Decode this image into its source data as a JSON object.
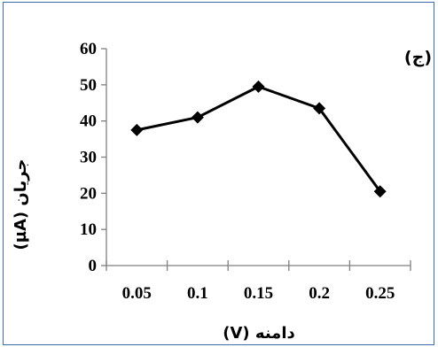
{
  "chart_data": {
    "type": "line",
    "panel_label": "(ج)",
    "title": "",
    "xlabel": "دامنه (V)",
    "ylabel": "جریان (µA)",
    "categories": [
      "0.05",
      "0.1",
      "0.15",
      "0.2",
      "0.25"
    ],
    "values": [
      37.5,
      41,
      49.5,
      43.5,
      20.5
    ],
    "ylim": [
      0,
      60
    ],
    "yticks": [
      "0",
      "10",
      "20",
      "30",
      "40",
      "50",
      "60"
    ],
    "grid": false,
    "legend": "none",
    "marker": "diamond",
    "line_color": "#000000",
    "border_color": "#3e6ea8"
  }
}
